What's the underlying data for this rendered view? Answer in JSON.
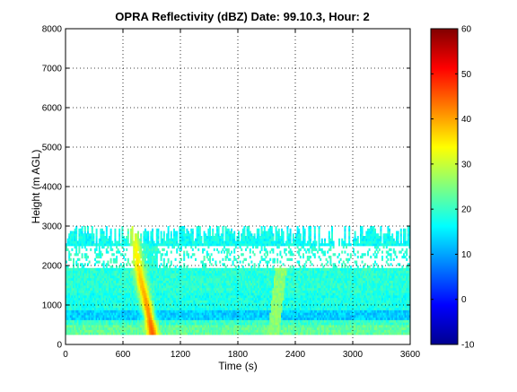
{
  "chart_data": {
    "type": "heatmap",
    "title": "OPRA Reflectivity (dBZ)  Date: 99.10.3, Hour: 2",
    "xlabel": "Time (s)",
    "ylabel": "Height (m AGL)",
    "xlim": [
      0,
      3600
    ],
    "ylim": [
      0,
      8000
    ],
    "x_ticks": [
      "0",
      "600",
      "1200",
      "1800",
      "2400",
      "3000",
      "3600"
    ],
    "y_ticks": [
      "0",
      "1000",
      "2000",
      "3000",
      "4000",
      "5000",
      "6000",
      "7000",
      "8000"
    ],
    "grid": true,
    "colorbar": {
      "min": -10,
      "max": 60,
      "colormap": "jet",
      "ticks": [
        "-10",
        "0",
        "10",
        "20",
        "30",
        "40",
        "50",
        "60"
      ]
    },
    "echo": {
      "base_height": 250,
      "top_height_typical": 3000,
      "background_dbz": 20,
      "layers": [
        {
          "from": 250,
          "to": 450,
          "dbz": 23
        },
        {
          "from": 600,
          "to": 850,
          "dbz": 13
        },
        {
          "from": 850,
          "to": 1300,
          "dbz": 18
        },
        {
          "from": 1300,
          "to": 2500,
          "dbz": 19
        },
        {
          "from": 2500,
          "to": 3000,
          "dbz": 17
        }
      ],
      "fall_streak": {
        "path": [
          [
            900,
            250
          ],
          [
            850,
            900
          ],
          [
            780,
            1600
          ],
          [
            730,
            2300
          ],
          [
            700,
            3000
          ]
        ],
        "peak_dbz": 45
      }
    }
  }
}
